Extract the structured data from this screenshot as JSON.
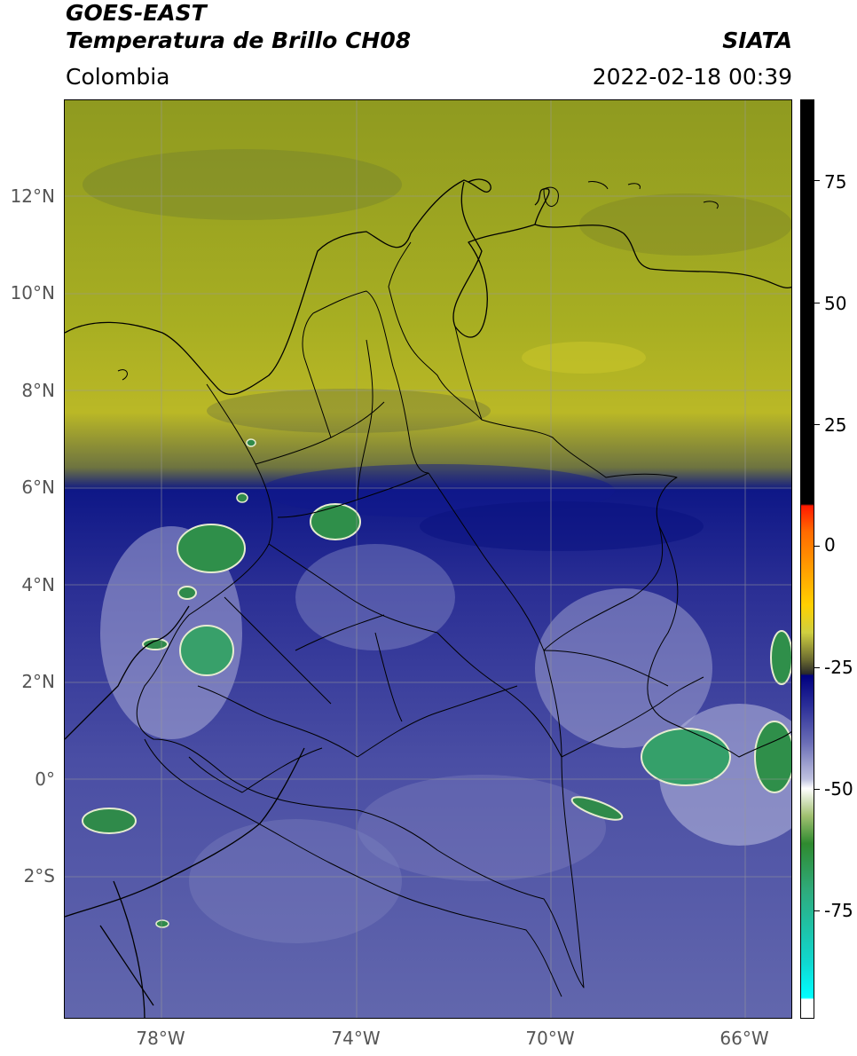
{
  "header": {
    "satellite": "GOES-EAST",
    "product": "Temperatura de Brillo CH08",
    "region": "Colombia",
    "agency": "SIATA",
    "timestamp": "2022-02-18 00:39"
  },
  "axes": {
    "lat_labels": [
      "12°N",
      "10°N",
      "8°N",
      "6°N",
      "4°N",
      "2°N",
      "0°",
      "2°S"
    ],
    "lon_labels": [
      "78°W",
      "74°W",
      "70°W",
      "66°W"
    ]
  },
  "colorbar": {
    "tick_labels": [
      "75",
      "50",
      "25",
      "0",
      "-25",
      "-50",
      "-75"
    ]
  },
  "colors": {
    "dry_air": "#a7ae22",
    "moist_band": "#0e1787",
    "mid_cloud": "#4a4ea4",
    "cold_tops": "#2f8a2f",
    "borders": "#000000"
  }
}
